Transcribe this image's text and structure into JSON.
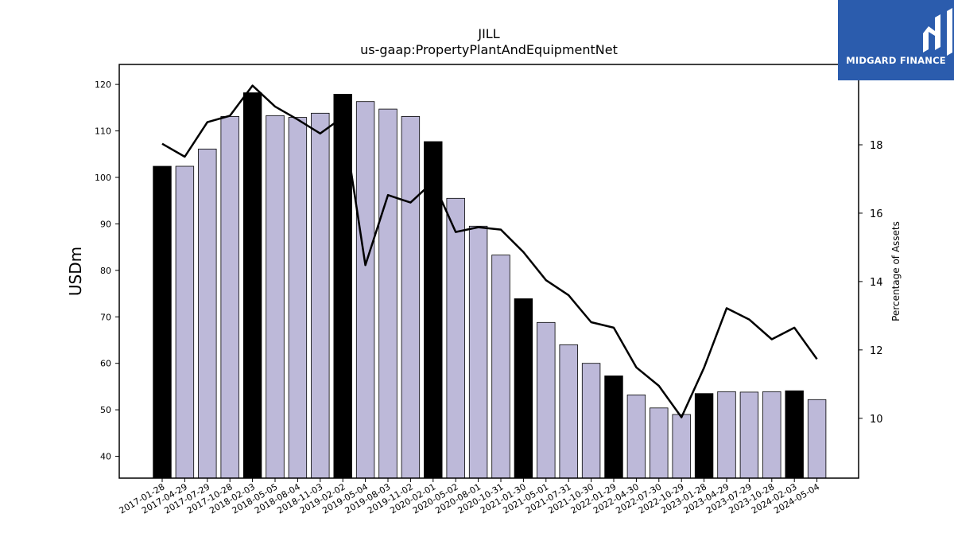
{
  "chart_data": {
    "type": "bar",
    "title": "JILL",
    "subtitle": "us-gaap:PropertyPlantAndEquipmentNet",
    "ylabel": "USDm",
    "y2label": "Percentage of Assets",
    "ylim": [
      35.3,
      124.3
    ],
    "y2lim": [
      8.25,
      20.35
    ],
    "yticks": [
      40,
      50,
      60,
      70,
      80,
      90,
      100,
      110,
      120
    ],
    "y2ticks": [
      10,
      12,
      14,
      16,
      18
    ],
    "categories": [
      "2017-01-28",
      "2017-04-29",
      "2017-07-29",
      "2017-10-28",
      "2018-02-03",
      "2018-05-05",
      "2018-08-04",
      "2018-11-03",
      "2019-02-02",
      "2019-05-04",
      "2019-08-03",
      "2019-11-02",
      "2020-02-01",
      "2020-05-02",
      "2020-08-01",
      "2020-10-31",
      "2021-01-30",
      "2021-05-01",
      "2021-07-31",
      "2021-10-30",
      "2022-01-29",
      "2022-04-30",
      "2022-07-30",
      "2022-10-29",
      "2023-01-28",
      "2023-04-29",
      "2023-07-29",
      "2023-10-28",
      "2024-02-03",
      "2024-05-04"
    ],
    "series": [
      {
        "kind": "bar",
        "axis": "left",
        "values": [
          102.4,
          102.4,
          106.1,
          113.1,
          118.2,
          113.3,
          112.9,
          113.8,
          117.9,
          116.3,
          114.7,
          113.1,
          107.7,
          95.5,
          89.5,
          83.3,
          73.9,
          68.8,
          64.0,
          60.0,
          57.3,
          53.2,
          50.4,
          49.0,
          53.5,
          53.9,
          53.8,
          53.9,
          54.1,
          52.2
        ]
      },
      {
        "kind": "line",
        "axis": "right",
        "values": [
          18.03,
          17.65,
          18.66,
          18.85,
          19.73,
          19.12,
          18.74,
          18.33,
          18.81,
          14.48,
          16.53,
          16.31,
          16.92,
          15.45,
          15.59,
          15.52,
          14.86,
          14.04,
          13.6,
          12.81,
          12.65,
          11.49,
          10.95,
          10.03,
          11.48,
          13.22,
          12.89,
          12.31,
          12.65,
          11.73
        ]
      }
    ],
    "highlight_color": "#000000",
    "bar_color": "#bdb9d9",
    "grid": false,
    "legend": "none"
  },
  "logo": {
    "text": "MIDGARD FINANCE",
    "background": "#2b5cad",
    "icon": "midgard-logo-icon"
  }
}
